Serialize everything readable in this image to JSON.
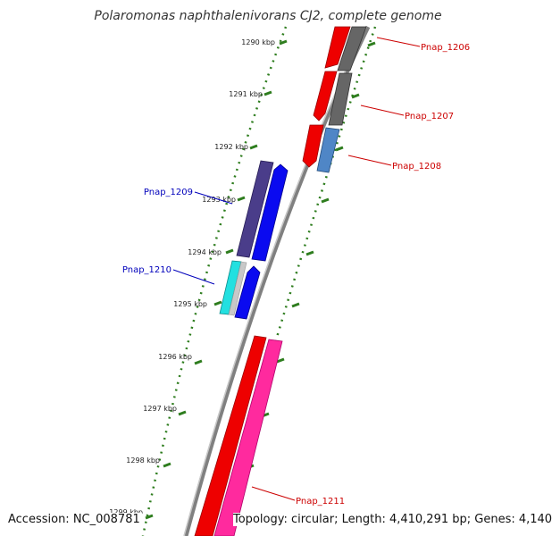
{
  "title": "Polaromonas naphthalenivorans CJ2, complete genome",
  "footer": {
    "accession": "Accession: NC_008781",
    "topology": "Topology: circular; Length: 4,410,291 bp; Genes: 4,140"
  },
  "colors": {
    "backbone": "#888888",
    "tick": "#2e7d1e",
    "forward_label": "#cc0000",
    "reverse_label": "#0000bb"
  },
  "ticks": [
    {
      "label": "1290 kbp"
    },
    {
      "label": "1291 kbp"
    },
    {
      "label": "1292 kbp"
    },
    {
      "label": "1293 kbp"
    },
    {
      "label": "1294 kbp"
    },
    {
      "label": "1295 kbp"
    },
    {
      "label": "1296 kbp"
    },
    {
      "label": "1297 kbp"
    },
    {
      "label": "1298 kbp"
    },
    {
      "label": "1299 kbp"
    }
  ],
  "gene_labels": {
    "pnap_1206": "Pnap_1206",
    "pnap_1207": "Pnap_1207",
    "pnap_1208": "Pnap_1208",
    "pnap_1209": "Pnap_1209",
    "pnap_1210": "Pnap_1210",
    "pnap_1211": "Pnap_1211"
  }
}
